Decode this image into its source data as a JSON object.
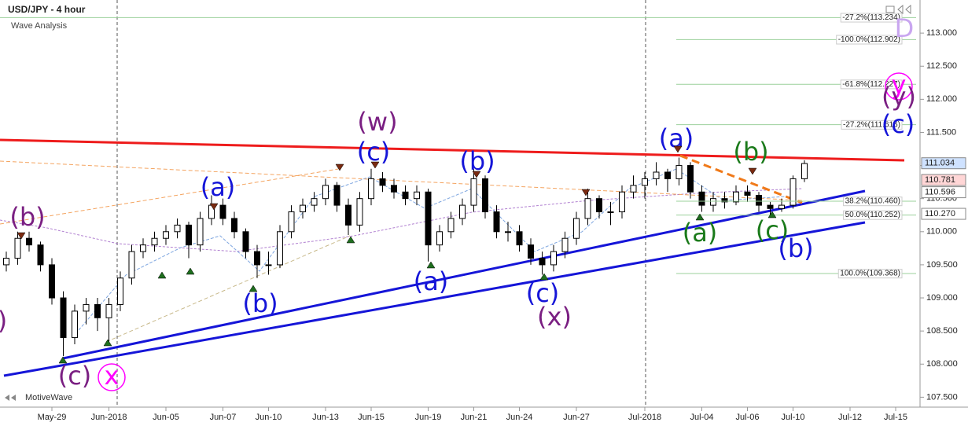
{
  "chart_data": {
    "type": "candlestick",
    "title": "USD/JPY - 4 hour",
    "subtitle": "Wave Analysis",
    "watermark": "MotiveWave",
    "up_color": "#ffffff",
    "down_color": "#000000",
    "categories": [
      null,
      null,
      null,
      null,
      "May-29",
      null,
      null,
      null,
      null,
      "Jun-2018",
      null,
      null,
      null,
      null,
      "Jun-05",
      null,
      null,
      null,
      null,
      "Jun-07",
      null,
      null,
      null,
      "Jun-10",
      null,
      null,
      null,
      null,
      "Jun-13",
      null,
      null,
      null,
      "Jun-15",
      null,
      null,
      null,
      null,
      "Jun-19",
      null,
      null,
      null,
      "Jun-21",
      null,
      null,
      null,
      "Jun-24",
      null,
      null,
      null,
      null,
      "Jun-27",
      null,
      null,
      null,
      null,
      null,
      "Jul-2018",
      null,
      null,
      null,
      null,
      "Jul-04",
      null,
      null,
      null,
      "Jul-06",
      null,
      null,
      null,
      "Jul-10",
      null,
      null,
      null,
      null,
      "Jul-12",
      null,
      null,
      null,
      "Jul-15"
    ],
    "ohlc": [
      [
        109.5,
        109.7,
        109.4,
        109.6
      ],
      [
        109.6,
        110.0,
        109.5,
        109.9
      ],
      [
        109.9,
        110.0,
        109.7,
        109.8
      ],
      [
        109.8,
        109.85,
        109.4,
        109.5
      ],
      [
        109.5,
        109.6,
        108.9,
        109.0
      ],
      [
        109.0,
        109.1,
        108.12,
        108.4
      ],
      [
        108.4,
        108.9,
        108.3,
        108.8
      ],
      [
        108.8,
        109.0,
        108.6,
        108.9
      ],
      [
        108.9,
        109.0,
        108.5,
        108.7
      ],
      [
        108.7,
        109.0,
        108.3,
        108.9
      ],
      [
        108.9,
        109.4,
        108.8,
        109.3
      ],
      [
        109.3,
        109.8,
        109.2,
        109.7
      ],
      [
        109.7,
        109.9,
        109.6,
        109.8
      ],
      [
        109.8,
        110.0,
        109.7,
        109.9
      ],
      [
        109.9,
        110.1,
        109.8,
        110.0
      ],
      [
        110.0,
        110.2,
        109.9,
        110.1
      ],
      [
        110.1,
        110.15,
        109.6,
        109.8
      ],
      [
        109.8,
        110.3,
        109.7,
        110.2
      ],
      [
        110.2,
        110.55,
        110.1,
        110.4
      ],
      [
        110.4,
        110.5,
        110.1,
        110.2
      ],
      [
        110.2,
        110.3,
        109.9,
        110.0
      ],
      [
        110.0,
        110.05,
        109.6,
        109.7
      ],
      [
        109.7,
        109.8,
        109.3,
        109.5
      ],
      [
        109.5,
        109.7,
        109.35,
        109.5
      ],
      [
        109.5,
        110.1,
        109.45,
        110.0
      ],
      [
        110.0,
        110.4,
        109.9,
        110.3
      ],
      [
        110.3,
        110.5,
        110.2,
        110.4
      ],
      [
        110.4,
        110.6,
        110.3,
        110.5
      ],
      [
        110.5,
        110.8,
        110.4,
        110.7
      ],
      [
        110.7,
        110.75,
        110.3,
        110.4
      ],
      [
        110.4,
        110.5,
        109.95,
        110.1
      ],
      [
        110.1,
        110.6,
        110.0,
        110.5
      ],
      [
        110.5,
        110.95,
        110.4,
        110.8
      ],
      [
        110.8,
        110.9,
        110.6,
        110.7
      ],
      [
        110.7,
        110.8,
        110.5,
        110.6
      ],
      [
        110.6,
        110.7,
        110.4,
        110.5
      ],
      [
        110.5,
        110.7,
        110.4,
        110.6
      ],
      [
        110.6,
        110.65,
        109.55,
        109.8
      ],
      [
        109.8,
        110.1,
        109.7,
        110.0
      ],
      [
        110.0,
        110.3,
        109.9,
        110.2
      ],
      [
        110.2,
        110.5,
        110.1,
        110.4
      ],
      [
        110.4,
        110.95,
        110.3,
        110.8
      ],
      [
        110.8,
        110.85,
        110.2,
        110.3
      ],
      [
        110.3,
        110.4,
        109.9,
        110.0
      ],
      [
        110.0,
        110.15,
        109.85,
        110.0
      ],
      [
        110.0,
        110.1,
        109.7,
        109.8
      ],
      [
        109.8,
        109.9,
        109.5,
        109.6
      ],
      [
        109.6,
        109.7,
        109.35,
        109.5
      ],
      [
        109.5,
        109.8,
        109.4,
        109.7
      ],
      [
        109.7,
        110.0,
        109.6,
        109.9
      ],
      [
        109.9,
        110.3,
        109.8,
        110.2
      ],
      [
        110.2,
        110.65,
        110.1,
        110.5
      ],
      [
        110.5,
        110.55,
        110.2,
        110.3
      ],
      [
        110.3,
        110.45,
        110.1,
        110.3
      ],
      [
        110.3,
        110.7,
        110.2,
        110.6
      ],
      [
        110.6,
        110.85,
        110.5,
        110.7
      ],
      [
        110.7,
        110.9,
        110.5,
        110.8
      ],
      [
        110.8,
        111.05,
        110.7,
        110.9
      ],
      [
        110.9,
        110.95,
        110.6,
        110.8
      ],
      [
        110.8,
        111.12,
        110.7,
        111.0
      ],
      [
        111.0,
        111.05,
        110.5,
        110.6
      ],
      [
        110.6,
        110.7,
        110.3,
        110.4
      ],
      [
        110.4,
        110.6,
        110.3,
        110.5
      ],
      [
        110.5,
        110.6,
        110.35,
        110.45
      ],
      [
        110.45,
        110.7,
        110.4,
        110.6
      ],
      [
        110.6,
        110.7,
        110.45,
        110.55
      ],
      [
        110.55,
        110.6,
        110.3,
        110.4
      ],
      [
        110.4,
        110.45,
        110.25,
        110.35
      ],
      [
        110.35,
        110.5,
        110.3,
        110.4
      ],
      [
        110.4,
        110.85,
        110.35,
        110.8
      ],
      [
        110.8,
        111.08,
        110.75,
        111.03
      ],
      null,
      null,
      null,
      null,
      null,
      null,
      null,
      null
    ],
    "ylim": [
      107.35,
      113.5
    ],
    "yticks": [
      {
        "value": 107.5,
        "label": "107.500"
      },
      {
        "value": 108,
        "label": "108.000"
      },
      {
        "value": 108.5,
        "label": "108.500"
      },
      {
        "value": 109,
        "label": "109.000"
      },
      {
        "value": 109.5,
        "label": "109.500"
      },
      {
        "value": 110,
        "label": "110.000"
      },
      {
        "value": 110.5,
        "label": "110.500"
      },
      {
        "value": 111,
        "label": "111.000"
      },
      {
        "value": 111.5,
        "label": "111.500"
      },
      {
        "value": 112,
        "label": "112.000"
      },
      {
        "value": 112.5,
        "label": "112.500"
      },
      {
        "value": 113,
        "label": "113.000"
      }
    ],
    "fib_levels": [
      {
        "value": 113.234,
        "label": "-27.2%(113.234)"
      },
      {
        "value": 112.902,
        "label": "-100.0%(112.902)"
      },
      {
        "value": 112.227,
        "label": "-61.8%(112.227)"
      },
      {
        "value": 111.616,
        "label": "-27.2%(111.616)"
      },
      {
        "value": 110.46,
        "label": "38.2%(110.460)"
      },
      {
        "value": 110.252,
        "label": "50.0%(110.252)"
      },
      {
        "value": 109.368,
        "label": "100.0%(109.368)"
      }
    ],
    "fib_color": "#9bd19b",
    "price_labels": [
      {
        "value": 111.034,
        "label": "111.034",
        "color": "#cfe2ff"
      },
      {
        "value": 110.781,
        "label": "110.781",
        "color": "#ffd6d6"
      },
      {
        "value": 110.596,
        "label": "110.596",
        "color": "#ffffff"
      },
      {
        "value": 110.27,
        "label": "110.270",
        "color": "#ffffff"
      }
    ],
    "waves": [
      {
        "text": "(b)",
        "color": "#7a1f82"
      },
      {
        "text": "(c)",
        "color": "#7a1f82"
      },
      {
        "text": "x",
        "color": "#ff00ff"
      },
      {
        "text": "(a)",
        "color": "#1515d8"
      },
      {
        "text": "(b)",
        "color": "#1515d8"
      },
      {
        "text": "(w)",
        "color": "#7a1f82"
      },
      {
        "text": "(c)",
        "color": "#1515d8"
      },
      {
        "text": "(b)",
        "color": "#1515d8"
      },
      {
        "text": "(a)",
        "color": "#1515d8"
      },
      {
        "text": "(c)",
        "color": "#1515d8"
      },
      {
        "text": "(x)",
        "color": "#7a1f82"
      },
      {
        "text": "(a)",
        "color": "#1515d8"
      },
      {
        "text": "(b)",
        "color": "#1a7a1a"
      },
      {
        "text": "(a)",
        "color": "#1a7a1a"
      },
      {
        "text": "(c)",
        "color": "#1a7a1a"
      },
      {
        "text": "(b)",
        "color": "#1515d8"
      },
      {
        "text": "D",
        "color": "#c9a6f0"
      },
      {
        "text": "y",
        "color": "#ff00ff"
      },
      {
        "text": "(y)",
        "color": "#7a1f82"
      },
      {
        "text": "(c)",
        "color": "#1515d8"
      },
      {
        "text": ")",
        "color": "#7a1f82"
      }
    ]
  }
}
